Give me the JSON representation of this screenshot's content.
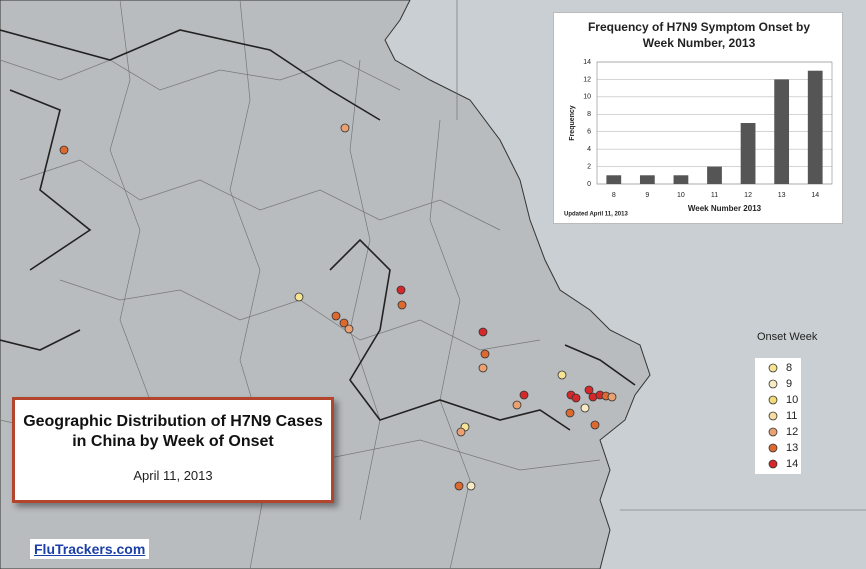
{
  "title": "Geographic Distribution of H7N9 Cases in China by Week of Onset",
  "date": "April 11, 2013",
  "brand": "FluTrackers.com",
  "legend": {
    "title": "Onset Week",
    "items": [
      {
        "week": 8,
        "color": "#f7e394"
      },
      {
        "week": 9,
        "color": "#f8ebc4"
      },
      {
        "week": 10,
        "color": "#f2da78"
      },
      {
        "week": 11,
        "color": "#f6dca0"
      },
      {
        "week": 12,
        "color": "#eba072"
      },
      {
        "week": 13,
        "color": "#dc6a30"
      },
      {
        "week": 14,
        "color": "#d5282a"
      }
    ]
  },
  "chart_data": {
    "type": "bar",
    "title": "Frequency of H7N9 Symptom Onset by Week Number, 2013",
    "x_label": "Week Number 2013",
    "y_label": "Frequency",
    "note": "Updated April 11, 2013",
    "categories": [
      "8",
      "9",
      "10",
      "11",
      "12",
      "13",
      "14"
    ],
    "values": [
      1,
      1,
      1,
      2,
      7,
      12,
      13
    ],
    "color": "#555555",
    "ylim": [
      0,
      14
    ],
    "yticks": [
      0,
      2,
      4,
      6,
      8,
      10,
      12,
      14
    ],
    "grid": true
  }
}
